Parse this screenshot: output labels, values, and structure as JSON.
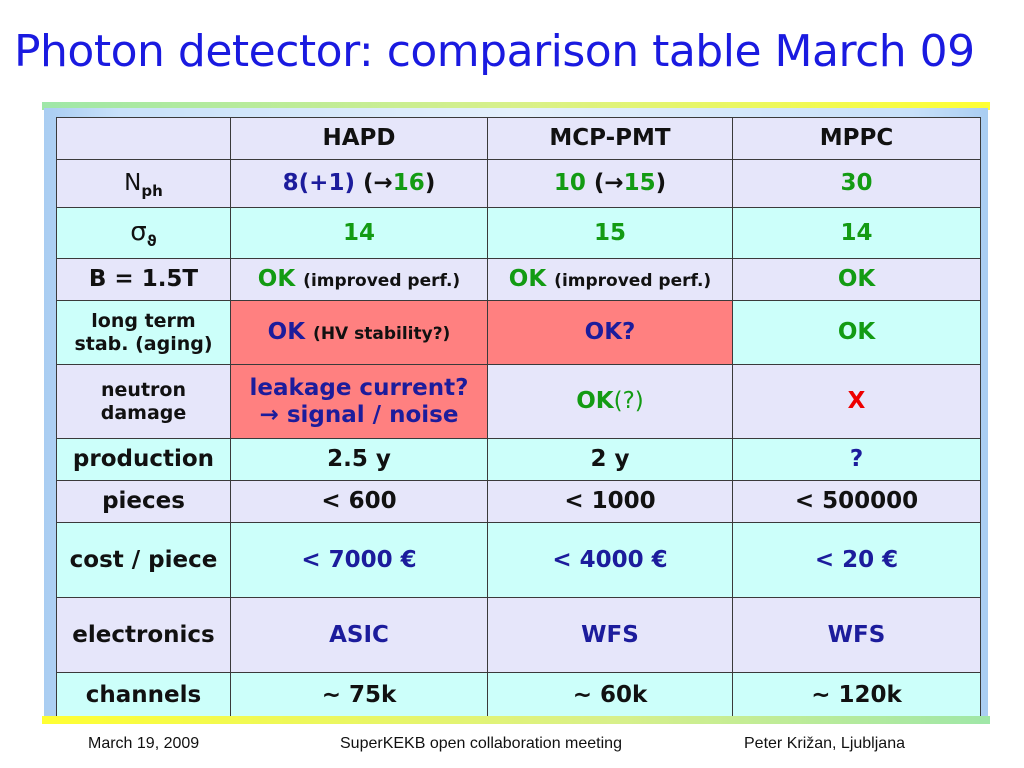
{
  "slide": {
    "title": "Photon detector: comparison table March 09"
  },
  "table": {
    "headers": [
      "",
      "HAPD",
      "MCP-PMT",
      "MPPC"
    ],
    "nph": {
      "label_main": "N",
      "label_sub": "ph",
      "hapd": {
        "a": "8(+1)",
        "open": "(→",
        "b": "16",
        "close": ")"
      },
      "mcp": {
        "a": "10",
        "open": "(→",
        "b": "15",
        "close": ")"
      },
      "mppc": "30"
    },
    "sigma": {
      "label_main": "σ",
      "label_sub": "ϑ",
      "values": [
        "14",
        "15",
        "14"
      ]
    },
    "b_field": {
      "label": "B = 1.5T",
      "hapd_ok": "OK",
      "hapd_note": "(improved perf.)",
      "mcp_ok": "OK",
      "mcp_note": "(improved perf.)",
      "mppc": "OK"
    },
    "long_term": {
      "label_line1": "long term",
      "label_line2": "stab. (aging)",
      "hapd_ok": "OK",
      "hapd_note": "(HV stability?)",
      "mcp": "OK?",
      "mppc": "OK"
    },
    "neutron": {
      "label_line1": "neutron",
      "label_line2": "damage",
      "hapd_line1": "leakage current?",
      "hapd_line2": "→ signal / noise",
      "mcp_ok": "OK",
      "mcp_q": "(?)",
      "mppc": "X"
    },
    "production": {
      "label": "production",
      "values": [
        "2.5 y",
        "2 y",
        "?"
      ]
    },
    "pieces": {
      "label": "pieces",
      "values": [
        "< 600",
        "< 1000",
        "< 500000"
      ]
    },
    "cost": {
      "label": "cost / piece",
      "values": [
        "< 7000 €",
        "< 4000 €",
        "< 20 €"
      ]
    },
    "electronics": {
      "label": "electronics",
      "values": [
        "ASIC",
        "WFS",
        "WFS"
      ]
    },
    "channels": {
      "label": "channels",
      "values": [
        "~ 75k",
        "~ 60k",
        "~ 120k"
      ]
    }
  },
  "footer": {
    "date": "March 19, 2009",
    "event": "SuperKEKB open collaboration meeting",
    "author": "Peter Križan, Ljubljana"
  },
  "colors": {
    "title": "#1a1ae0",
    "lavender": "#e6e6fa",
    "cyan": "#ccfffa",
    "highlight_red": "#ff8080",
    "ok_green": "#139b13",
    "navy": "#1c1c9c",
    "x_red": "#ee0000"
  }
}
